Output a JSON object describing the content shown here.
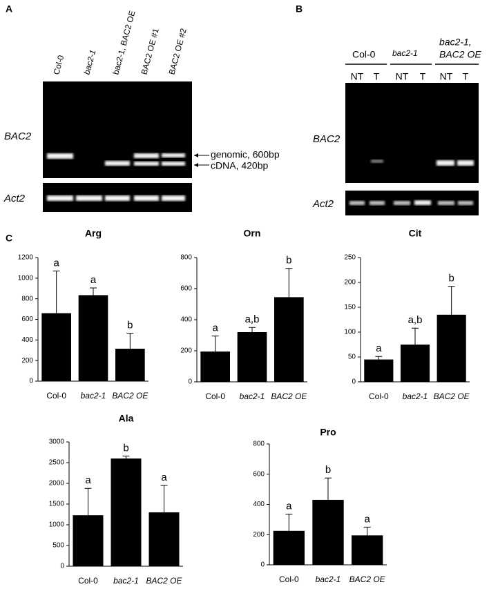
{
  "panel_labels": [
    "A",
    "B",
    "C"
  ],
  "gel_a": {
    "lanes": [
      "Col-0",
      "bac2-1",
      "bac2-1, BAC2 OE",
      "BAC2 OE #1",
      "BAC2 OE #2"
    ],
    "rows": [
      "BAC2",
      "Act2"
    ],
    "bands": [
      "genomic, 600bp",
      "cDNA, 420bp"
    ]
  },
  "gel_b": {
    "groups": [
      "Col-0",
      "bac2-1"
    ],
    "group_3": [
      "bac2-1,",
      "BAC2 OE"
    ],
    "lanes": [
      "NT",
      "T",
      "NT",
      "T",
      "NT",
      "T"
    ],
    "rows": [
      "BAC2",
      "Act2"
    ]
  },
  "chart_data": [
    {
      "type": "bar",
      "title": "Arg",
      "categories": [
        "Col-0",
        "bac2-1",
        "BAC2 OE"
      ],
      "values": [
        660,
        835,
        315
      ],
      "errors": [
        410,
        70,
        150
      ],
      "annotations": [
        "a",
        "a",
        "b"
      ],
      "color": "#000000",
      "ylim": [
        0,
        1200
      ],
      "yticks": [
        0,
        200,
        400,
        600,
        800,
        1000,
        1200
      ]
    },
    {
      "type": "bar",
      "title": "Orn",
      "categories": [
        "Col-0",
        "bac2-1",
        "BAC2 OE"
      ],
      "values": [
        195,
        320,
        545
      ],
      "errors": [
        100,
        30,
        185
      ],
      "annotations": [
        "a",
        "a,b",
        "b"
      ],
      "color": "#000000",
      "ylim": [
        0,
        800
      ],
      "yticks": [
        0,
        200,
        400,
        600,
        800
      ]
    },
    {
      "type": "bar",
      "title": "Cit",
      "categories": [
        "Col-0",
        "bac2-1",
        "BAC2 OE"
      ],
      "values": [
        45,
        75,
        135
      ],
      "errors": [
        6,
        33,
        57
      ],
      "annotations": [
        "a",
        "a,b",
        "b"
      ],
      "color": "#000000",
      "ylim": [
        0,
        250
      ],
      "yticks": [
        0,
        50,
        100,
        150,
        200,
        250
      ]
    },
    {
      "type": "bar",
      "title": "Ala",
      "categories": [
        "Col-0",
        "bac2-1",
        "BAC2 OE"
      ],
      "values": [
        1230,
        2600,
        1300
      ],
      "errors": [
        650,
        60,
        650
      ],
      "annotations": [
        "a",
        "b",
        "a"
      ],
      "color": "#000000",
      "ylim": [
        0,
        3000
      ],
      "yticks": [
        0,
        500,
        1000,
        1500,
        2000,
        2500,
        3000
      ]
    },
    {
      "type": "bar",
      "title": "Pro",
      "categories": [
        "Col-0",
        "bac2-1",
        "BAC2 OE"
      ],
      "values": [
        225,
        430,
        195
      ],
      "errors": [
        110,
        145,
        55
      ],
      "annotations": [
        "a",
        "b",
        "a"
      ],
      "color": "#000000",
      "ylim": [
        0,
        800
      ],
      "yticks": [
        0,
        200,
        400,
        600,
        800
      ]
    }
  ]
}
